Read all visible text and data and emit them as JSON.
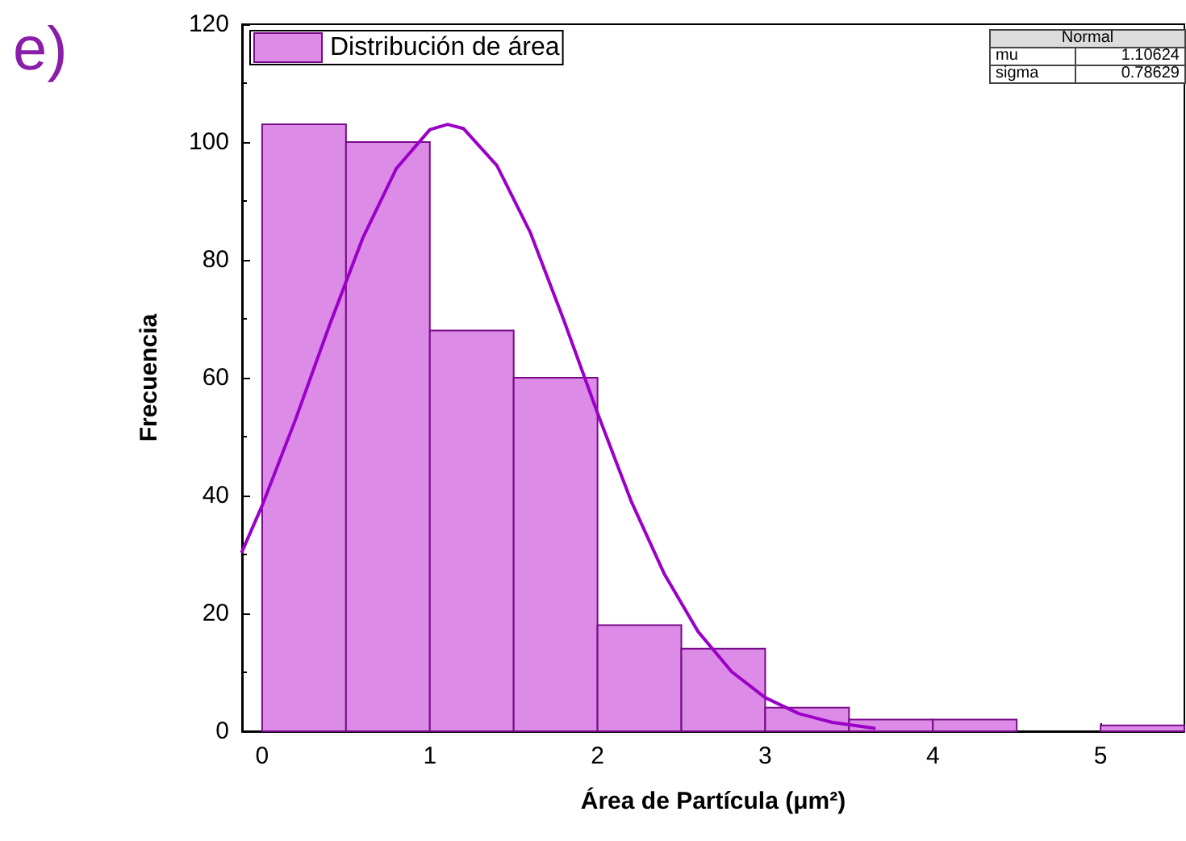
{
  "chart_data": {
    "type": "histogram",
    "xlabel": "Área de Partícula (μm²)",
    "ylabel": "Frecuencia",
    "annotations": [
      "e)",
      "Normal",
      "mu",
      "1.10624",
      "sigma",
      "0.78629"
    ],
    "bins": [
      0,
      0.5,
      1,
      1.5,
      2,
      2.5,
      3,
      3.5,
      4,
      4.5,
      5,
      5.5
    ],
    "series": [
      {
        "name": "Distribución de área",
        "color": "#dc8ce6",
        "values": [
          103,
          100,
          68,
          60,
          18,
          14,
          4,
          2,
          2,
          0,
          1
        ]
      },
      {
        "type": "line",
        "color": "#9b00c8",
        "x": [
          -0.12,
          0,
          0.2,
          0.4,
          0.6,
          0.8,
          1.0,
          1.106,
          1.2,
          1.4,
          1.6,
          1.8,
          2.0,
          2.2,
          2.4,
          2.6,
          2.8,
          3.0,
          3.2,
          3.4,
          3.65
        ],
        "values": [
          30.5,
          38.3,
          53,
          68.8,
          83.7,
          95.5,
          102.1,
          103,
          102.3,
          96,
          84.6,
          69.7,
          54,
          39.1,
          26.6,
          16.9,
          10.1,
          5.7,
          3,
          1.5,
          0.5
        ]
      }
    ],
    "xlim": [
      -0.12,
      5.5
    ],
    "xticks": [
      0,
      1,
      2,
      3,
      4,
      5
    ],
    "ylim": [
      0,
      120
    ],
    "yticks": [
      0,
      20,
      40,
      60,
      80,
      100,
      120
    ],
    "legend": "top left",
    "grid": false,
    "marker": "none",
    "line_style": "solid"
  }
}
